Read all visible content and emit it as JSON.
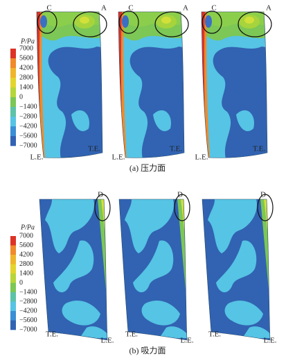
{
  "panels": [
    {
      "caption": "(a) 压力面",
      "colorbar": {
        "title": "P/Pa",
        "labels": [
          "7000",
          "5600",
          "4200",
          "2800",
          "1400",
          "0",
          "−1400",
          "−2800",
          "−4200",
          "−5600",
          "−7000"
        ]
      },
      "plots": [
        {
          "marks": [
            "C",
            "A"
          ],
          "leading_edge": "L.E.",
          "trailing_edge": "T.E."
        },
        {
          "marks": [
            "C",
            "A"
          ],
          "leading_edge": "L.E.",
          "trailing_edge": "T.E."
        },
        {
          "marks": [
            "C",
            "A"
          ],
          "leading_edge": "L.E.",
          "trailing_edge": "T.E."
        }
      ]
    },
    {
      "caption": "(b) 吸力面",
      "colorbar": {
        "title": "P/Pa",
        "labels": [
          "7000",
          "5600",
          "4200",
          "2800",
          "1400",
          "0",
          "−1400",
          "−2800",
          "−4200",
          "−5600",
          "−7000"
        ]
      },
      "plots": [
        {
          "marks": [
            "D"
          ],
          "leading_edge": "L.E.",
          "trailing_edge": "T.E."
        },
        {
          "marks": [
            "D"
          ],
          "leading_edge": "L.E.",
          "trailing_edge": "T.E."
        },
        {
          "marks": [
            "D"
          ],
          "leading_edge": "L.E.",
          "trailing_edge": "T.E."
        }
      ]
    }
  ]
}
